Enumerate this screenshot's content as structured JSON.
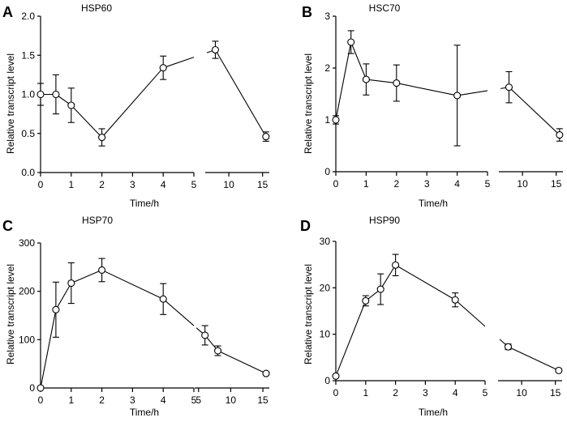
{
  "figure": {
    "background": "#ffffff",
    "line_color": "#000000"
  },
  "chart_data": [
    {
      "type": "line",
      "panel": "A",
      "title": "HSP60",
      "xlabel": "Time/h",
      "ylabel": "Relative transcript level",
      "broken_x_axis": true,
      "x_segment_1": {
        "range": [
          0,
          5
        ],
        "ticks": [
          "0",
          "1",
          "2",
          "3",
          "4",
          "5"
        ]
      },
      "x_segment_2": {
        "range": [
          6.5,
          16
        ],
        "ticks": [
          "10",
          "15"
        ]
      },
      "ylim": [
        0,
        2.0
      ],
      "yticks": [
        "0.0",
        "0.5",
        "1.0",
        "1.5",
        "2.0"
      ],
      "series": [
        {
          "name": "HSP60",
          "x": [
            0,
            0.5,
            1,
            2,
            4,
            8,
            15.5
          ],
          "y": [
            1.0,
            1.0,
            0.86,
            0.45,
            1.34,
            1.57,
            0.46
          ],
          "err": [
            0.14,
            0.25,
            0.22,
            0.11,
            0.15,
            0.11,
            0.06
          ]
        }
      ]
    },
    {
      "type": "line",
      "panel": "B",
      "title": "HSC70",
      "xlabel": "Time/h",
      "ylabel": "Relative transcript level",
      "broken_x_axis": true,
      "x_segment_1": {
        "range": [
          0,
          5
        ],
        "ticks": [
          "0",
          "1",
          "2",
          "3",
          "4",
          "5"
        ]
      },
      "x_segment_2": {
        "range": [
          6.5,
          16
        ],
        "ticks": [
          "10",
          "15"
        ]
      },
      "ylim": [
        0,
        3
      ],
      "yticks": [
        "0",
        "1",
        "2",
        "3"
      ],
      "series": [
        {
          "name": "HSC70",
          "x": [
            0,
            0.5,
            1,
            2,
            4,
            8,
            15.5
          ],
          "y": [
            1.0,
            2.5,
            1.78,
            1.71,
            1.47,
            1.63,
            0.71
          ],
          "err": [
            0.08,
            0.22,
            0.3,
            0.35,
            0.97,
            0.3,
            0.12
          ]
        }
      ]
    },
    {
      "type": "line",
      "panel": "C",
      "title": "HSP70",
      "xlabel": "Time/h",
      "ylabel": "Relative transcript level",
      "broken_x_axis": true,
      "x_segment_1": {
        "range": [
          0,
          5
        ],
        "ticks": [
          "0",
          "1",
          "2",
          "3",
          "4",
          "5"
        ]
      },
      "x_segment_2": {
        "range": [
          4.4,
          16
        ],
        "ticks": [
          "5",
          "10",
          "15"
        ]
      },
      "ylim": [
        0,
        300
      ],
      "yticks": [
        "0",
        "100",
        "200",
        "300"
      ],
      "series": [
        {
          "name": "HSP70",
          "x": [
            0,
            0.5,
            1,
            2,
            4,
            6,
            8,
            15.5
          ],
          "y": [
            0,
            162,
            217,
            244,
            184,
            109,
            77,
            30
          ],
          "err": [
            0,
            57,
            42,
            24,
            32,
            20,
            10,
            2
          ]
        }
      ]
    },
    {
      "type": "line",
      "panel": "D",
      "title": "HSP90",
      "xlabel": "Time/h",
      "ylabel": "Relative transcript level",
      "broken_x_axis": true,
      "x_segment_1": {
        "range": [
          0,
          5
        ],
        "ticks": [
          "0",
          "1",
          "2",
          "3",
          "4",
          "5"
        ]
      },
      "x_segment_2": {
        "range": [
          6.5,
          16
        ],
        "ticks": [
          "10",
          "15"
        ]
      },
      "ylim": [
        0,
        30
      ],
      "yticks": [
        "0",
        "10",
        "20",
        "30"
      ],
      "series": [
        {
          "name": "HSP90",
          "x": [
            0,
            1,
            1.5,
            2,
            4,
            8,
            15.5
          ],
          "y": [
            1,
            17.2,
            19.7,
            24.9,
            17.4,
            7.3,
            2.2
          ],
          "err": [
            0.3,
            1.1,
            3.3,
            2.3,
            1.5,
            0.6,
            0.2
          ]
        }
      ]
    }
  ]
}
